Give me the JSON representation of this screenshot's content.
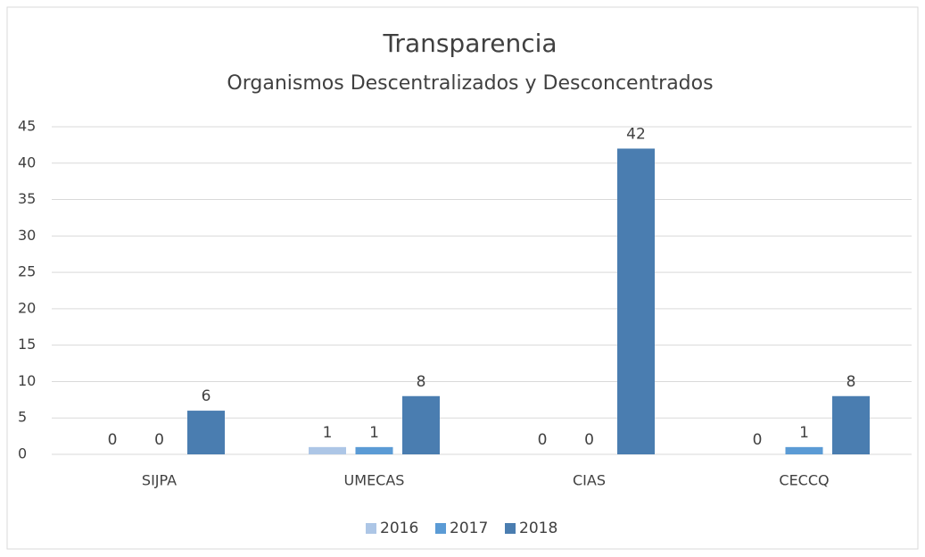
{
  "chart_data": {
    "type": "bar",
    "title": "Transparencia",
    "subtitle": "Organismos Descentralizados y Desconcentrados",
    "categories": [
      "SIJPA",
      "UMECAS",
      "CIAS",
      "CECCQ"
    ],
    "series": [
      {
        "name": "2016",
        "color": "#adc6e6",
        "values": [
          0,
          1,
          0,
          0
        ]
      },
      {
        "name": "2017",
        "color": "#5b9bd5",
        "values": [
          0,
          1,
          0,
          1
        ]
      },
      {
        "name": "2018",
        "color": "#4a7db0",
        "values": [
          6,
          8,
          42,
          8
        ]
      }
    ],
    "ylim": [
      0,
      45
    ],
    "yticks": [
      0,
      5,
      10,
      15,
      20,
      25,
      30,
      35,
      40,
      45
    ],
    "grid": true,
    "legend": "bottom"
  }
}
